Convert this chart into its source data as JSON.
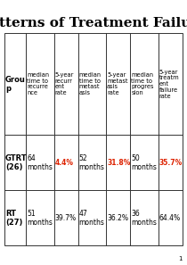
{
  "title": "Patterns of Treatment Failure",
  "title_fontsize": 11,
  "background_color": "#ffffff",
  "page_number": "1",
  "headers": [
    "Grou\np",
    "median\ntime to\nrecurre\nnce",
    "5-year\nrecurr\nent\nrate",
    "median\ntime to\nmetast\nasis",
    "5-year\nmetast\nasis\nrate",
    "median\ntime to\nprogres\nsion",
    "5-year\ntreatm\nent\nfailure\nrate"
  ],
  "rows": [
    {
      "group": "GTRT\n(26)",
      "col1": "64\nmonths",
      "col2": "4.4%",
      "col2_red": true,
      "col3": "52\nmonths",
      "col4": "31.8%",
      "col4_red": true,
      "col5": "50\nmonths",
      "col6": "35.7%",
      "col6_red": true
    },
    {
      "group": "RT\n(27)",
      "col1": "51\nmonths",
      "col2": "39.7%",
      "col2_red": false,
      "col3": "47\nmonths",
      "col4": "36.2%",
      "col4_red": false,
      "col5": "36\nmonths",
      "col6": "64.4%",
      "col6_red": false
    }
  ],
  "header_color": "#000000",
  "cell_color": "#000000",
  "red_color": "#dd2200",
  "grid_color": "#333333",
  "header_fontsize": 4.8,
  "cell_fontsize": 5.5,
  "group_fontsize": 6.0
}
